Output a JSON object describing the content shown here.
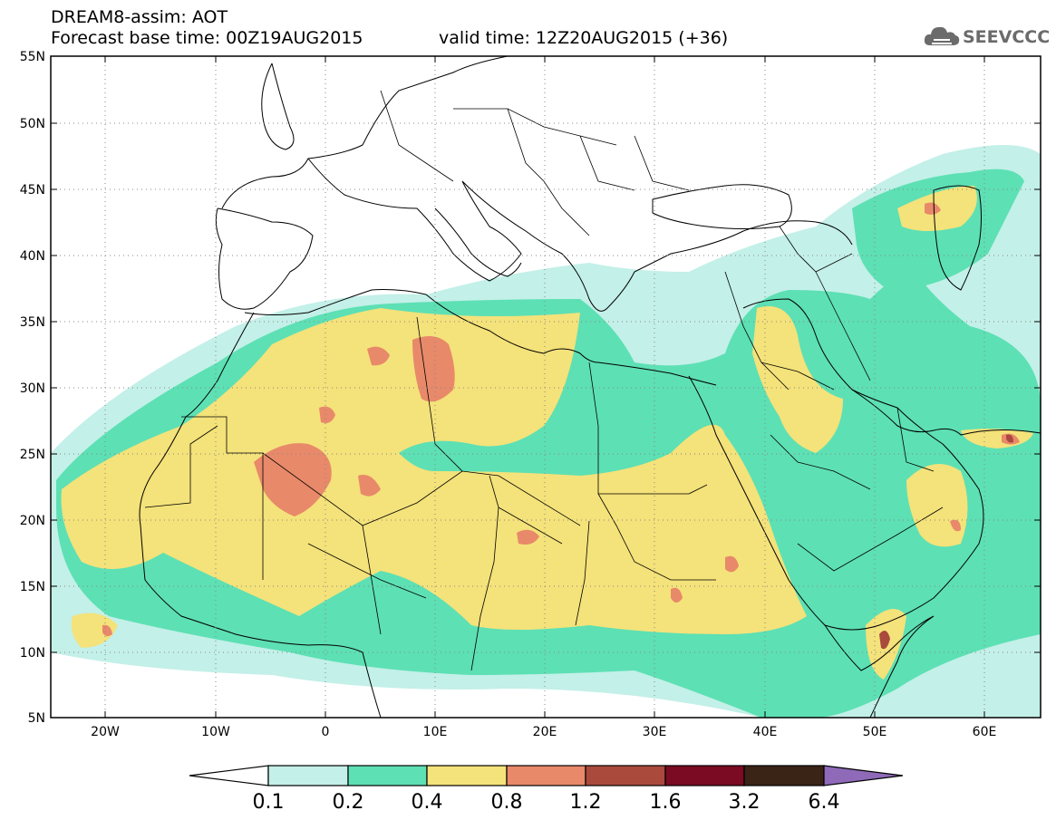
{
  "header": {
    "model_line": "DREAM8-assim: AOT",
    "base_time": "Forecast base time: 00Z19AUG2015",
    "valid_time": "valid time: 12Z20AUG2015 (+36)"
  },
  "logo": {
    "name": "SEEVCCC",
    "icon": "cloud-icon"
  },
  "map": {
    "lat_labels": [
      "55N",
      "50N",
      "45N",
      "40N",
      "35N",
      "30N",
      "25N",
      "20N",
      "15N",
      "10N",
      "5N"
    ],
    "lon_labels": [
      "20W",
      "10W",
      "0",
      "10E",
      "20E",
      "30E",
      "40E",
      "50E",
      "60E"
    ],
    "extent": {
      "lon_min": -25,
      "lon_max": 65,
      "lat_min": 5,
      "lat_max": 55
    },
    "gridlines": "dotted"
  },
  "colorbar": {
    "levels": [
      "0.1",
      "0.2",
      "0.4",
      "0.8",
      "1.2",
      "1.6",
      "3.2",
      "6.4"
    ],
    "colors": [
      "#ffffff",
      "#c3f0e8",
      "#5de0b4",
      "#f4e27a",
      "#e8896a",
      "#a94a3d",
      "#7a0b22",
      "#3a2415",
      "#8e6ab8"
    ]
  }
}
